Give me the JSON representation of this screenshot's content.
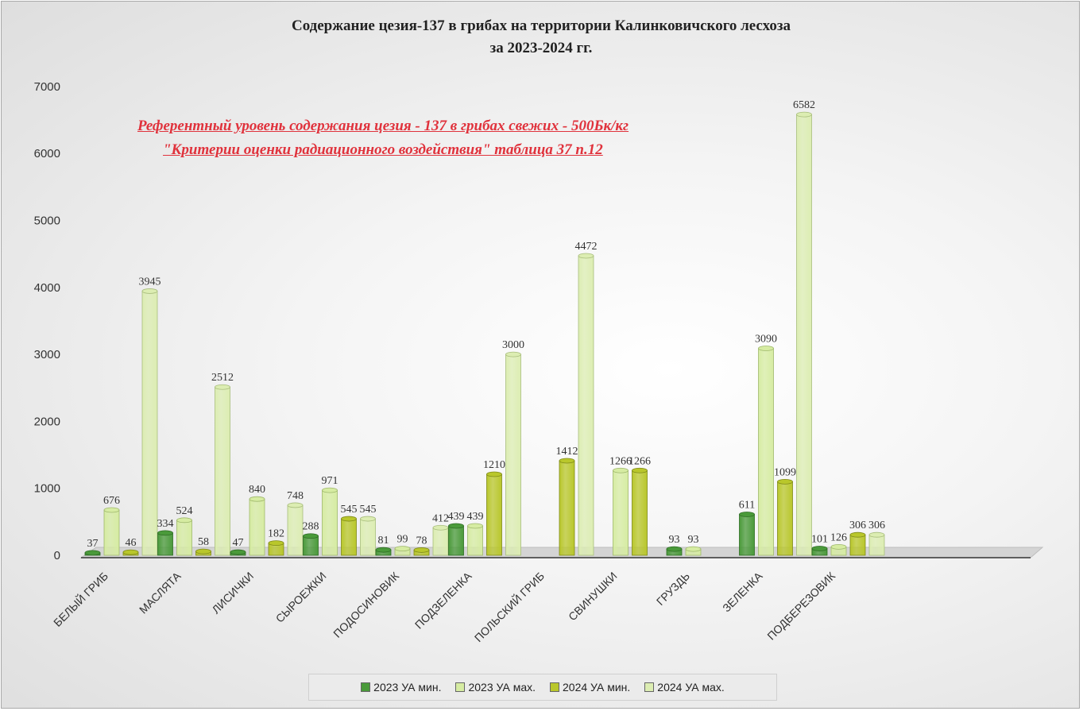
{
  "colors": {
    "y23min": "#4a9a3a",
    "y23max": "#d6eca2",
    "y24min": "#b9c72b",
    "y24max": "#dcedb2"
  },
  "chart_data": {
    "type": "bar",
    "title": "Содержание цезия-137 в грибах на территории Калинковичского лесхоза",
    "subtitle": "за 2023-2024 гг.",
    "note_line1": "Референтный уровень содержания цезия - 137 в грибах свежих - 500Бк/кг",
    "note_line2": "\"Критерии оценки радиационного воздействия\" таблица 37 п.12",
    "xlabel": "",
    "ylabel": "",
    "ylim": [
      0,
      7000
    ],
    "yticks": [
      "0",
      "1000",
      "2000",
      "3000",
      "4000",
      "5000",
      "6000",
      "7000"
    ],
    "legend_position": "bottom",
    "grid": false,
    "categories": [
      "БЕЛЫЙ ГРИБ",
      "МАСЛЯТА",
      "ЛИСИЧКИ",
      "СЫРОЕЖКИ",
      "ПОДОСИНОВИК",
      "ПОДЗЕЛЕНКА",
      "ПОЛЬСКИЙ ГРИБ",
      "СВИНУШКИ",
      "ГРУЗДЬ",
      "ЗЕЛЕНКА",
      "ПОДБЕРЕЗОВИК"
    ],
    "series": [
      {
        "name": "2023 УА мин.",
        "values": [
          37,
          334,
          47,
          288,
          81,
          439,
          null,
          null,
          93,
          611,
          101
        ]
      },
      {
        "name": "2023 УА мах.",
        "values": [
          676,
          524,
          840,
          971,
          99,
          439,
          null,
          1266,
          93,
          3090,
          126
        ]
      },
      {
        "name": "2024 УА мин.",
        "values": [
          46,
          58,
          182,
          545,
          78,
          1210,
          1412,
          1266,
          null,
          1099,
          306
        ]
      },
      {
        "name": "2024 УА мах.",
        "values": [
          3945,
          2512,
          748,
          545,
          412,
          3000,
          4472,
          null,
          null,
          6582,
          306
        ]
      }
    ]
  }
}
